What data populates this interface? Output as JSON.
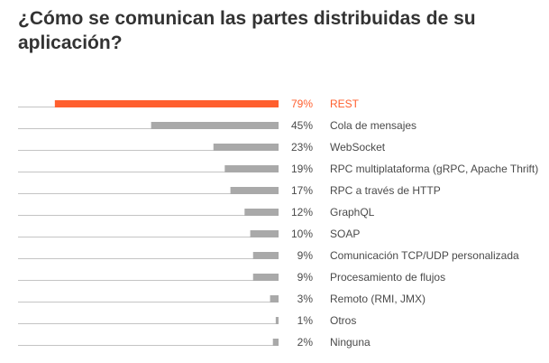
{
  "title": "¿Cómo se comunican las partes distribuidas de su aplicación?",
  "colors": {
    "highlight": "#ff5f2e",
    "bar": "#a9a9a9",
    "baseline": "#c4c4c4",
    "label": "#4a4a4a",
    "title": "#333333"
  },
  "chart_data": {
    "type": "bar",
    "orientation": "horizontal",
    "direction": "right-to-left",
    "unit": "%",
    "xlim": [
      0,
      100
    ],
    "highlight_category": "REST",
    "categories": [
      "REST",
      "Cola de mensajes",
      "WebSocket",
      "RPC multiplataforma (gRPC, Apache Thrift)",
      "RPC a través de HTTP",
      "GraphQL",
      "SOAP",
      "Comunicación TCP/UDP personalizada",
      "Procesamiento de flujos",
      "Remoto (RMI, JMX)",
      "Otros",
      "Ninguna"
    ],
    "values": [
      79,
      45,
      23,
      19,
      17,
      12,
      10,
      9,
      9,
      3,
      1,
      2
    ],
    "value_labels": [
      "79%",
      "45%",
      "23%",
      "19%",
      "17%",
      "12%",
      "10%",
      "9%",
      "9%",
      "3%",
      "1%",
      "2%"
    ]
  }
}
